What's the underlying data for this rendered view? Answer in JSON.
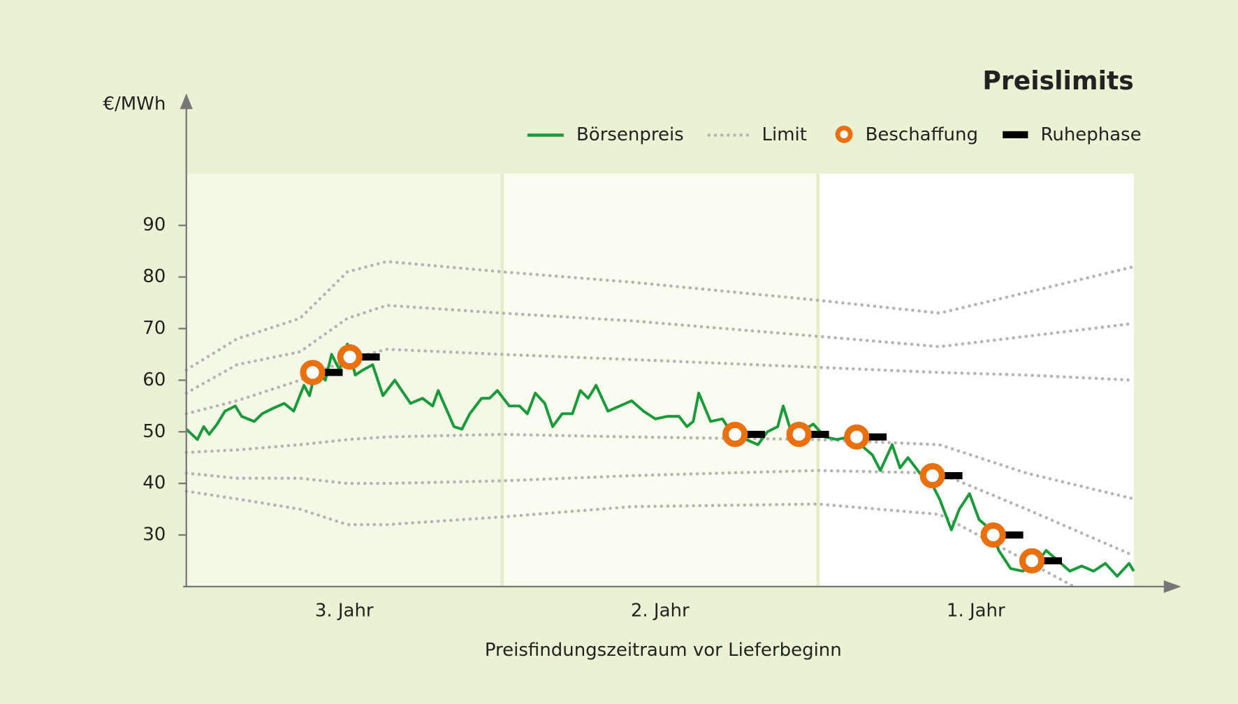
{
  "chart_data": {
    "type": "line",
    "title": "Preislimits",
    "y_label": "€/MWh",
    "x_label": "Preisfindungszeitraum vor Lieferbeginn",
    "categories": [
      "3. Jahr",
      "2. Jahr",
      "1. Jahr"
    ],
    "band_colors": [
      "#f4f8e6",
      "#fafcf0",
      "#ffffff"
    ],
    "xlim": [
      0,
      1200
    ],
    "ylim": [
      20,
      100
    ],
    "yticks": [
      30,
      40,
      50,
      60,
      70,
      80,
      90
    ],
    "price": {
      "name": "Börsenpreis",
      "color": "#1a9a3a",
      "x": [
        0,
        14,
        22,
        29,
        39,
        49,
        62,
        70,
        86,
        96,
        109,
        124,
        136,
        149,
        156,
        164,
        176,
        184,
        194,
        204,
        214,
        224,
        236,
        249,
        264,
        284,
        299,
        312,
        319,
        339,
        349,
        359,
        374,
        384,
        394,
        409,
        422,
        432,
        442,
        454,
        464,
        476,
        489,
        499,
        509,
        519,
        534,
        549,
        564,
        579,
        594,
        609,
        624,
        634,
        642,
        649,
        664,
        679,
        694,
        709,
        724,
        736,
        749,
        756,
        764,
        779,
        794,
        809,
        824,
        839,
        854,
        869,
        879,
        894,
        904,
        914,
        929,
        944,
        954,
        969,
        979,
        992,
        1004,
        1019,
        1029,
        1044,
        1059,
        1074,
        1089,
        1104,
        1119,
        1134,
        1149,
        1164,
        1179,
        1194,
        1200
      ],
      "values": [
        50.5,
        48.5,
        51,
        49.5,
        51.5,
        54,
        55,
        53,
        52,
        53.5,
        54.5,
        55.5,
        54,
        59,
        57,
        62,
        60,
        65,
        62,
        67,
        61,
        62,
        63,
        57,
        60,
        55.5,
        56.5,
        55,
        58,
        51,
        50.5,
        53.5,
        56.5,
        56.5,
        58,
        55,
        55,
        53.5,
        57.5,
        55.5,
        51,
        53.5,
        53.5,
        58,
        56.5,
        59,
        54,
        55,
        56,
        54,
        52.5,
        53,
        53,
        51,
        52,
        57.5,
        52,
        52.5,
        49,
        48.5,
        47.5,
        50,
        51,
        55,
        51,
        50,
        51.5,
        49,
        48.5,
        49,
        47.5,
        45.5,
        42.5,
        47.5,
        43,
        45,
        42,
        40,
        37,
        31,
        35,
        38,
        33,
        31,
        27,
        23.5,
        23,
        24,
        27,
        25,
        23,
        24,
        23,
        24.5,
        22,
        24.5,
        23
      ]
    },
    "limits": {
      "name": "Limit",
      "color": "#b4b4b4",
      "lines": [
        {
          "x": [
            0,
            64,
            144,
            204,
            254,
            400,
            564,
            800,
            954,
            1064,
            1200
          ],
          "values": [
            62,
            68,
            72,
            81,
            83,
            81,
            79,
            75.5,
            73,
            77,
            82
          ]
        },
        {
          "x": [
            0,
            64,
            144,
            204,
            254,
            400,
            564,
            800,
            954,
            1064,
            1200
          ],
          "values": [
            57.5,
            63,
            65.5,
            72,
            74.5,
            73,
            71.5,
            68.5,
            66.5,
            68.5,
            71
          ]
        },
        {
          "x": [
            0,
            64,
            144,
            204,
            254,
            400,
            564,
            800,
            954,
            1064,
            1200
          ],
          "values": [
            53.5,
            56,
            60,
            64,
            66,
            65,
            64,
            62.5,
            61.5,
            61,
            60
          ]
        },
        {
          "x": [
            0,
            64,
            144,
            204,
            254,
            400,
            564,
            800,
            954,
            1064,
            1200
          ],
          "values": [
            46,
            46.5,
            47.5,
            48.5,
            49,
            49.5,
            49,
            48.5,
            47.5,
            42,
            37
          ]
        },
        {
          "x": [
            0,
            64,
            144,
            204,
            254,
            400,
            564,
            800,
            954,
            1064,
            1200
          ],
          "values": [
            42,
            41,
            41,
            40,
            40,
            40.5,
            41.5,
            42.5,
            42,
            35,
            26
          ]
        },
        {
          "x": [
            0,
            64,
            144,
            204,
            254,
            400,
            564,
            800,
            954,
            1064,
            1124
          ],
          "values": [
            38.5,
            37,
            35,
            32,
            32,
            33.5,
            35.5,
            36,
            34,
            25,
            20
          ]
        }
      ]
    },
    "procurement": {
      "name": "Beschaffung",
      "color": "#e8700f",
      "x": [
        160,
        207,
        695,
        776,
        849,
        945,
        1022,
        1071
      ],
      "values": [
        61.5,
        64.5,
        49.5,
        49.5,
        49,
        41.5,
        30,
        25
      ]
    },
    "rest": {
      "name": "Ruhephase",
      "color": "#000000",
      "x": [
        160,
        207,
        695,
        776,
        849,
        945,
        1022,
        1071
      ],
      "values": [
        61.5,
        64.5,
        49.5,
        49.5,
        49,
        41.5,
        30,
        25
      ]
    }
  }
}
